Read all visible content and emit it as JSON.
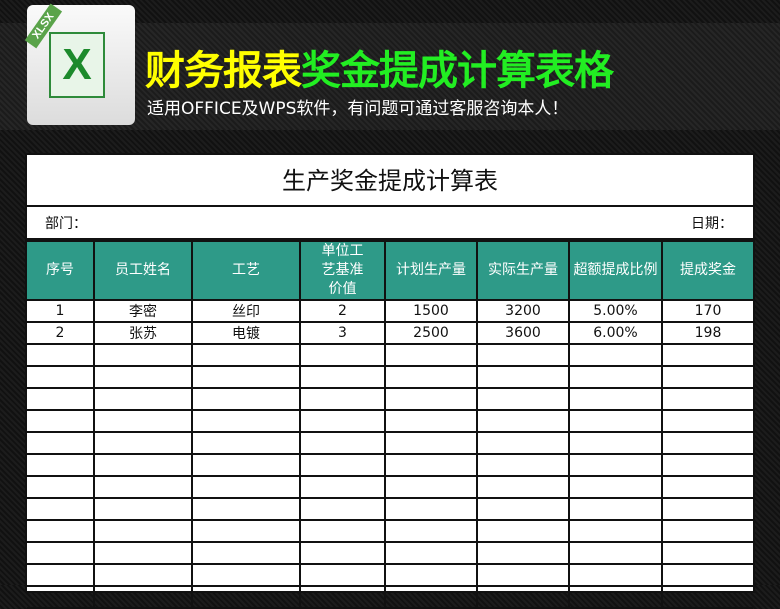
{
  "banner": {
    "title_yellow": "财务报表",
    "title_green": "奖金提成计算表格",
    "subtitle": "适用OFFICE及WPS软件，有问题可通过客服咨询本人！",
    "icon_label": "XLSX",
    "icon": "excel-file-icon",
    "colors": {
      "yellow": "#ffff00",
      "green": "#22ee22",
      "header": "#2e9a88"
    }
  },
  "sheet": {
    "title": "生产奖金提成计算表",
    "dept_label": "部门：",
    "date_label": "日期：",
    "columns": [
      "序号",
      "员工姓名",
      "工艺",
      "单位工艺基准价值",
      "计划生产量",
      "实际生产量",
      "超额提成比例",
      "提成奖金"
    ],
    "rows": [
      [
        "1",
        "李密",
        "丝印",
        "2",
        "1500",
        "3200",
        "5.00%",
        "170"
      ],
      [
        "2",
        "张苏",
        "电镀",
        "3",
        "2500",
        "3600",
        "6.00%",
        "198"
      ]
    ]
  }
}
